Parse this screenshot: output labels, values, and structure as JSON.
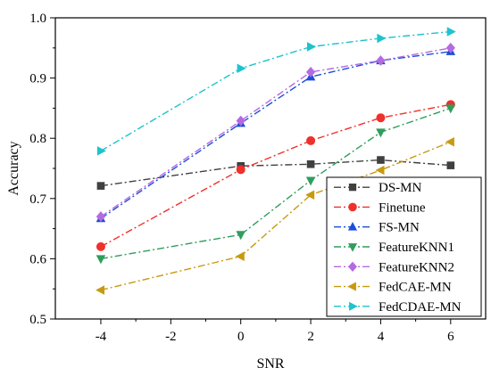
{
  "chart_data": {
    "type": "line",
    "title": "",
    "xlabel": "SNR",
    "ylabel": "Accuracy",
    "x": [
      -4,
      0,
      2,
      4,
      6
    ],
    "x_ticks": [
      "-4",
      "-2",
      "0",
      "2",
      "4",
      "6"
    ],
    "x_tick_values": [
      -4,
      -2,
      0,
      2,
      4,
      6
    ],
    "y_ticks": [
      "0.5",
      "0.6",
      "0.7",
      "0.8",
      "0.9",
      "1.0"
    ],
    "y_tick_values": [
      0.5,
      0.6,
      0.7,
      0.8,
      0.9,
      1.0
    ],
    "xlim": [
      -5.3,
      7.0
    ],
    "ylim": [
      0.5,
      1.0
    ],
    "grid": false,
    "legend_position": "bottom-right",
    "series": [
      {
        "name": "DS-MN",
        "values": [
          0.721,
          0.754,
          0.757,
          0.764,
          0.755
        ],
        "color": "#404040",
        "marker": "square",
        "dash": "dash-dot"
      },
      {
        "name": "Finetune",
        "values": [
          0.62,
          0.748,
          0.796,
          0.834,
          0.856
        ],
        "color": "#f0302a",
        "marker": "circle",
        "dash": "dash-dot"
      },
      {
        "name": "FS-MN",
        "values": [
          0.667,
          0.825,
          0.902,
          0.929,
          0.944
        ],
        "color": "#1c4ed8",
        "marker": "triangle-up",
        "dash": "dash-dot"
      },
      {
        "name": "FeatureKNN1",
        "values": [
          0.6,
          0.64,
          0.73,
          0.81,
          0.85
        ],
        "color": "#2e9e5c",
        "marker": "triangle-down",
        "dash": "dash-dot"
      },
      {
        "name": "FeatureKNN2",
        "values": [
          0.67,
          0.829,
          0.91,
          0.929,
          0.95
        ],
        "color": "#b36ae2",
        "marker": "diamond",
        "dash": "dash-dot"
      },
      {
        "name": "FedCAE-MN",
        "values": [
          0.548,
          0.604,
          0.706,
          0.747,
          0.794
        ],
        "color": "#c79a10",
        "marker": "triangle-left",
        "dash": "dash-dot"
      },
      {
        "name": "FedCDAE-MN",
        "values": [
          0.779,
          0.916,
          0.952,
          0.966,
          0.977
        ],
        "color": "#1ec3cc",
        "marker": "triangle-right",
        "dash": "dash-dot"
      }
    ]
  }
}
